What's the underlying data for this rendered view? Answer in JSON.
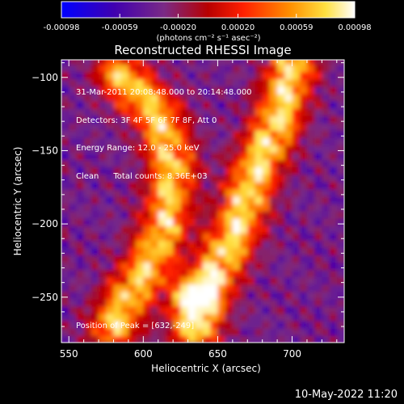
{
  "chart_data": {
    "type": "heatmap",
    "title": "Reconstructed RHESSI Image",
    "xlabel": "Heliocentric X (arcsec)",
    "ylabel": "Heliocentric Y (arcsec)",
    "xlim": [
      545,
      735
    ],
    "ylim": [
      -281,
      -88
    ],
    "x_ticks": [
      550,
      600,
      650,
      700
    ],
    "y_ticks": [
      -100,
      -150,
      -200,
      -250
    ],
    "colorbar": {
      "min": -0.00098,
      "max": 0.00098,
      "tick_values": [
        -0.00098,
        -0.00059,
        -0.0002,
        0.0002,
        0.00059,
        0.00098
      ],
      "tick_labels": [
        "-0.00098",
        "-0.00059",
        "-0.00020",
        "0.00020",
        "0.00059",
        "0.00098"
      ],
      "unit_label": "(photons cm⁻² s⁻¹ asec⁻²)",
      "colors": [
        "#0000ff",
        "#4000b0",
        "#7a2a86",
        "#b80000",
        "#ff2000",
        "#ff9000",
        "#ffe040",
        "#ffffff"
      ]
    },
    "ridges": [
      {
        "points": [
          [
            585,
            -98
          ],
          [
            610,
            -125
          ],
          [
            620,
            -160
          ],
          [
            615,
            -200
          ],
          [
            605,
            -225
          ],
          [
            590,
            -250
          ],
          [
            580,
            -270
          ]
        ],
        "peak": 0.0007
      },
      {
        "points": [
          [
            700,
            -93
          ],
          [
            690,
            -130
          ],
          [
            675,
            -165
          ],
          [
            662,
            -205
          ],
          [
            650,
            -230
          ],
          [
            640,
            -255
          ],
          [
            635,
            -272
          ]
        ],
        "peak": 0.0008
      }
    ],
    "peak": {
      "x": 632,
      "y": -249,
      "value": 0.00098
    },
    "annotations": {
      "time": "31-Mar-2011 20:08:48.000 to 20:14:48.000",
      "detectors": "Detectors: 3F 4F 5F 6F 7F 8F, Att 0",
      "energy": "Energy Range: 12.0 - 25.0 keV",
      "clean": "Clean",
      "counts": "Total counts: 8.36E+03",
      "peak_position": "Position of Peak = [632,-249]"
    }
  },
  "footer": {
    "date": "10-May-2022 11:20"
  }
}
